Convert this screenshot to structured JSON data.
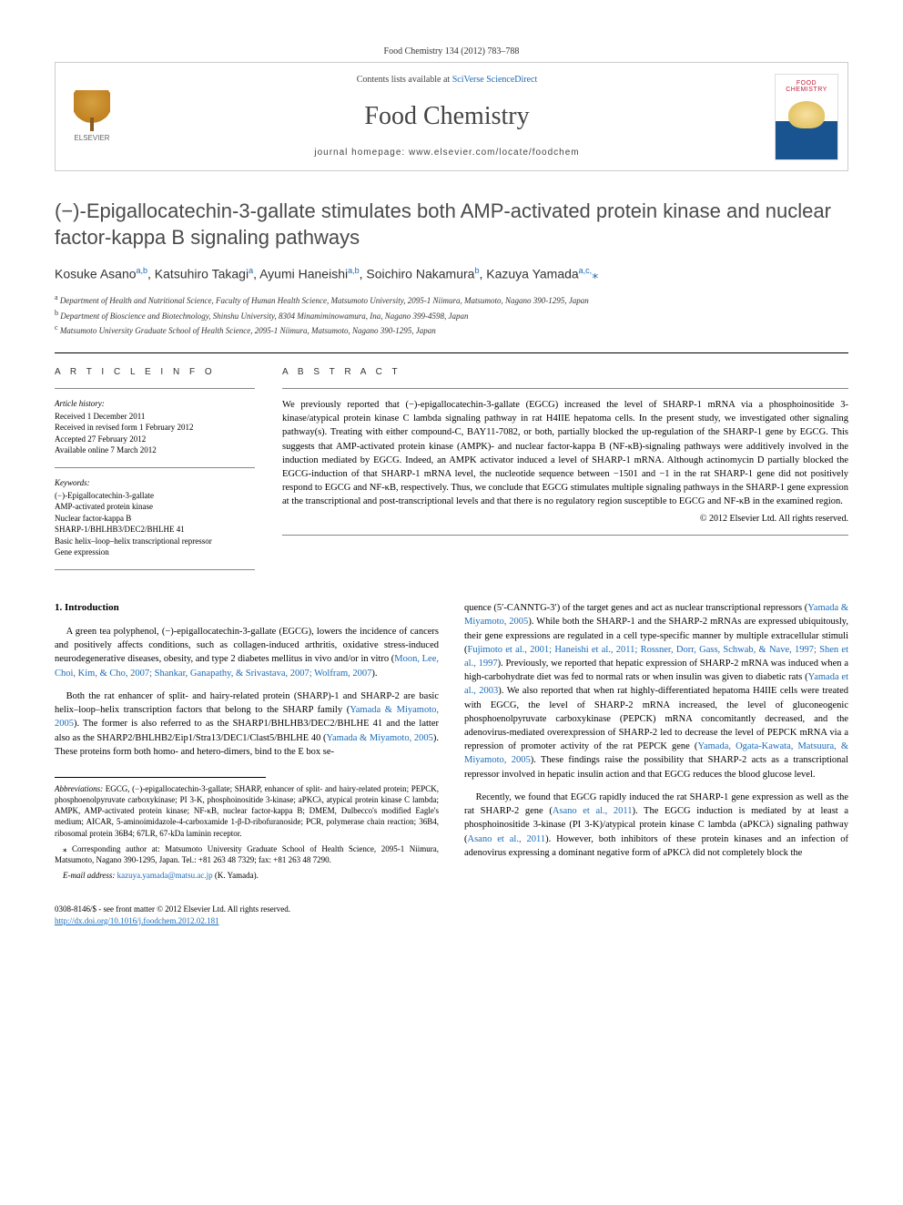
{
  "citation": "Food Chemistry 134 (2012) 783–788",
  "masthead": {
    "elsevier_label": "ELSEVIER",
    "contents_prefix": "Contents lists available at ",
    "contents_link": "SciVerse ScienceDirect",
    "journal_name": "Food Chemistry",
    "homepage_label": "journal homepage: www.elsevier.com/locate/foodchem",
    "cover_line1": "FOOD",
    "cover_line2": "CHEMISTRY"
  },
  "title": "(−)-Epigallocatechin-3-gallate stimulates both AMP-activated protein kinase and nuclear factor-kappa B signaling pathways",
  "authors_html": "Kosuke Asano<sup>a,b</sup>, Katsuhiro Takagi<sup>a</sup>, Ayumi Haneishi<sup>a,b</sup>, Soichiro Nakamura<sup>b</sup>, Kazuya Yamada<sup>a,c,</sup><span class='star'>⁎</span>",
  "affiliations": [
    {
      "sup": "a",
      "text": "Department of Health and Nutritional Science, Faculty of Human Health Science, Matsumoto University, 2095-1 Niimura, Matsumoto, Nagano 390-1295, Japan"
    },
    {
      "sup": "b",
      "text": "Department of Bioscience and Biotechnology, Shinshu University, 8304 Minamiminowamura, Ina, Nagano 399-4598, Japan"
    },
    {
      "sup": "c",
      "text": "Matsumoto University Graduate School of Health Science, 2095-1 Niimura, Matsumoto, Nagano 390-1295, Japan"
    }
  ],
  "article_info": {
    "heading": "A R T I C L E   I N F O",
    "history_label": "Article history:",
    "history": [
      "Received 1 December 2011",
      "Received in revised form 1 February 2012",
      "Accepted 27 February 2012",
      "Available online 7 March 2012"
    ],
    "keywords_label": "Keywords:",
    "keywords": [
      "(−)-Epigallocatechin-3-gallate",
      "AMP-activated protein kinase",
      "Nuclear factor-kappa B",
      "SHARP-1/BHLHB3/DEC2/BHLHE 41",
      "Basic helix–loop–helix transcriptional repressor",
      "Gene expression"
    ]
  },
  "abstract": {
    "heading": "A B S T R A C T",
    "text": "We previously reported that (−)-epigallocatechin-3-gallate (EGCG) increased the level of SHARP-1 mRNA via a phosphoinositide 3-kinase/atypical protein kinase C lambda signaling pathway in rat H4IIE hepatoma cells. In the present study, we investigated other signaling pathway(s). Treating with either compound-C, BAY11-7082, or both, partially blocked the up-regulation of the SHARP-1 gene by EGCG. This suggests that AMP-activated protein kinase (AMPK)- and nuclear factor-kappa B (NF-κB)-signaling pathways were additively involved in the induction mediated by EGCG. Indeed, an AMPK activator induced a level of SHARP-1 mRNA. Although actinomycin D partially blocked the EGCG-induction of that SHARP-1 mRNA level, the nucleotide sequence between −1501 and −1 in the rat SHARP-1 gene did not positively respond to EGCG and NF-κB, respectively. Thus, we conclude that EGCG stimulates multiple signaling pathways in the SHARP-1 gene expression at the transcriptional and post-transcriptional levels and that there is no regulatory region susceptible to EGCG and NF-κB in the examined region.",
    "copyright": "© 2012 Elsevier Ltd. All rights reserved."
  },
  "body": {
    "section_heading": "1. Introduction",
    "left": {
      "p1_pre": "A green tea polyphenol, (−)-epigallocatechin-3-gallate (EGCG), lowers the incidence of cancers and positively affects conditions, such as collagen-induced arthritis, oxidative stress-induced neurodegenerative diseases, obesity, and type 2 diabetes mellitus in vivo and/or in vitro (",
      "p1_ref": "Moon, Lee, Choi, Kim, & Cho, 2007; Shankar, Ganapathy, & Srivastava, 2007; Wolfram, 2007",
      "p1_post": ").",
      "p2_a": "Both the rat enhancer of split- and hairy-related protein (SHARP)-1 and SHARP-2 are basic helix–loop–helix transcription factors that belong to the SHARP family (",
      "p2_ref1": "Yamada & Miyamoto, 2005",
      "p2_b": "). The former is also referred to as the SHARP1/BHLHB3/DEC2/BHLHE 41 and the latter also as the SHARP2/BHLHB2/Eip1/Stra13/DEC1/Clast5/BHLHE 40 (",
      "p2_ref2": "Yamada & Miyamoto, 2005",
      "p2_c": "). These proteins form both homo- and hetero-dimers, bind to the E box se-"
    },
    "right": {
      "p1_a": "quence (5′-CANNTG-3′) of the target genes and act as nuclear transcriptional repressors (",
      "p1_ref1": "Yamada & Miyamoto, 2005",
      "p1_b": "). While both the SHARP-1 and the SHARP-2 mRNAs are expressed ubiquitously, their gene expressions are regulated in a cell type-specific manner by multiple extracellular stimuli (",
      "p1_ref2": "Fujimoto et al., 2001; Haneishi et al., 2011; Rossner, Dorr, Gass, Schwab, & Nave, 1997; Shen et al., 1997",
      "p1_c": "). Previously, we reported that hepatic expression of SHARP-2 mRNA was induced when a high-carbohydrate diet was fed to normal rats or when insulin was given to diabetic rats (",
      "p1_ref3": "Yamada et al., 2003",
      "p1_d": "). We also reported that when rat highly-differentiated hepatoma H4IIE cells were treated with EGCG, the level of SHARP-2 mRNA increased, the level of gluconeogenic phosphoenolpyruvate carboxykinase (PEPCK) mRNA concomitantly decreased, and the adenovirus-mediated overexpression of SHARP-2 led to decrease the level of PEPCK mRNA via a repression of promoter activity of the rat PEPCK gene (",
      "p1_ref4": "Yamada, Ogata-Kawata, Matsuura, & Miyamoto, 2005",
      "p1_e": "). These findings raise the possibility that SHARP-2 acts as a transcriptional repressor involved in hepatic insulin action and that EGCG reduces the blood glucose level.",
      "p2_a": "Recently, we found that EGCG rapidly induced the rat SHARP-1 gene expression as well as the rat SHARP-2 gene (",
      "p2_ref1": "Asano et al., 2011",
      "p2_b": "). The EGCG induction is mediated by at least a phosphoinositide 3-kinase (PI 3-K)/atypical protein kinase C lambda (aPKCλ) signaling pathway (",
      "p2_ref2": "Asano et al., 2011",
      "p2_c": "). However, both inhibitors of these protein kinases and an infection of adenovirus expressing a dominant negative form of aPKCλ did not completely block the"
    }
  },
  "footnotes": {
    "abbrev_label": "Abbreviations:",
    "abbrev_text": " EGCG, (−)-epigallocatechin-3-gallate; SHARP, enhancer of split- and hairy-related protein; PEPCK, phosphoenolpyruvate carboxykinase; PI 3-K, phosphoinositide 3-kinase; aPKCλ, atypical protein kinase C lambda; AMPK, AMP-activated protein kinase; NF-κB, nuclear factor-kappa B; DMEM, Dulbecco's modified Eagle's medium; AICAR, 5-aminoimidazole-4-carboxamide 1-β-D-ribofuranoside; PCR, polymerase chain reaction; 36B4, ribosomal protein 36B4; 67LR, 67-kDa laminin receptor.",
    "corr_label": "⁎ Corresponding author at:",
    "corr_text": " Matsumoto University Graduate School of Health Science, 2095-1 Niimura, Matsumoto, Nagano 390-1295, Japan. Tel.: +81 263 48 7329; fax: +81 263 48 7290.",
    "email_label": "E-mail address:",
    "email_value": " kazuya.yamada@matsu.ac.jp",
    "email_suffix": " (K. Yamada)."
  },
  "doi": {
    "line1": "0308-8146/$ - see front matter © 2012 Elsevier Ltd. All rights reserved.",
    "link": "http://dx.doi.org/10.1016/j.foodchem.2012.02.181"
  },
  "colors": {
    "link": "#1a6bb8",
    "text": "#000000",
    "heading_gray": "#4a4a4a"
  }
}
